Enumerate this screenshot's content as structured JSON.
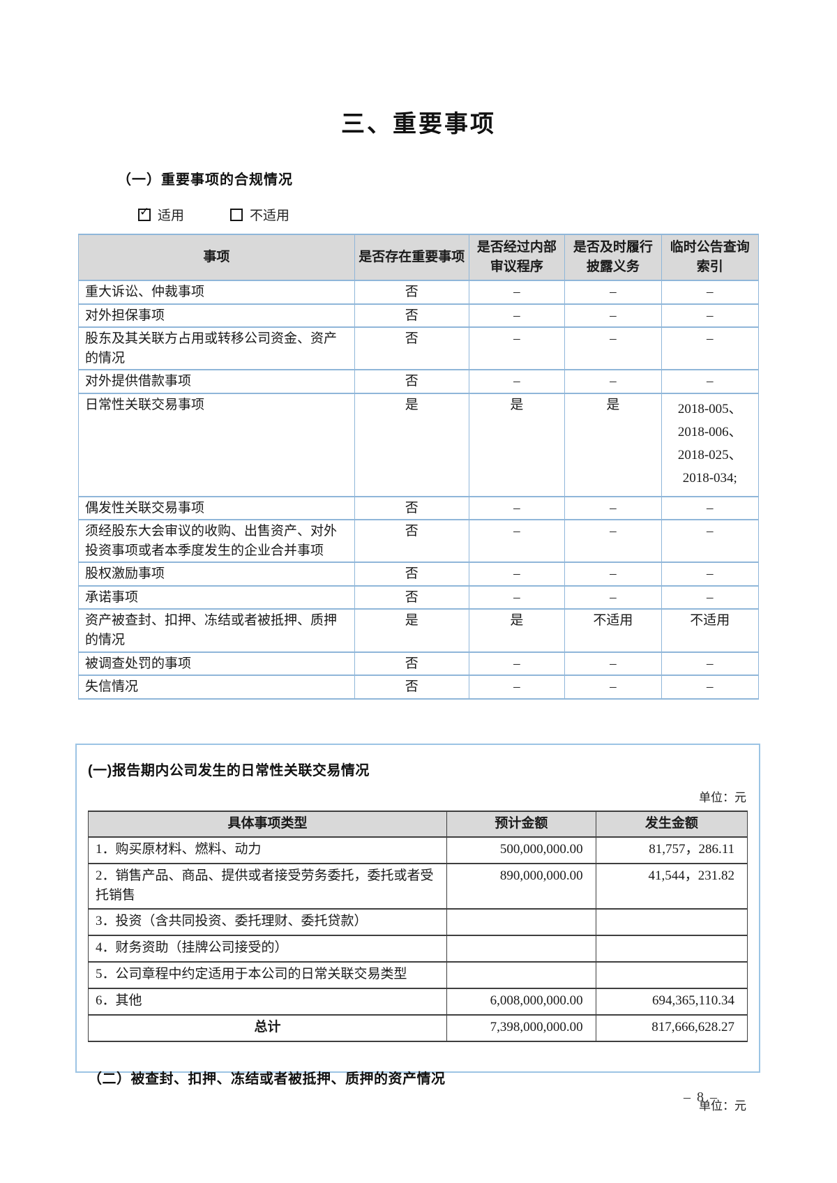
{
  "doc": {
    "title": "三、重要事项",
    "page_number": "– 8 –"
  },
  "compliance": {
    "heading": "（一）重要事项的合规情况",
    "applicable_label": "适用",
    "not_applicable_label": "不适用",
    "table": {
      "headers": [
        "事项",
        "是否存在重要事项",
        "是否经过内部审议程序",
        "是否及时履行披露义务",
        "临时公告查询索引"
      ],
      "rows": [
        [
          "重大诉讼、仲裁事项",
          "否",
          "–",
          "–",
          "–"
        ],
        [
          "对外担保事项",
          "否",
          "–",
          "–",
          "–"
        ],
        [
          "股东及其关联方占用或转移公司资金、资产的情况",
          "否",
          "–",
          "–",
          "–"
        ],
        [
          "对外提供借款事项",
          "否",
          "–",
          "–",
          "–"
        ],
        [
          "日常性关联交易事项",
          "是",
          "是",
          "是",
          "2018-005、\n2018-006、\n2018-025、\n2018-034;"
        ],
        [
          "偶发性关联交易事项",
          "否",
          "–",
          "–",
          "–"
        ],
        [
          "须经股东大会审议的收购、出售资产、对外投资事项或者本季度发生的企业合并事项",
          "否",
          "–",
          "–",
          "–"
        ],
        [
          "股权激励事项",
          "否",
          "–",
          "–",
          "–"
        ],
        [
          "承诺事项",
          "否",
          "–",
          "–",
          "–"
        ],
        [
          "资产被查封、扣押、冻结或者被抵押、质押的情况",
          "是",
          "是",
          "不适用",
          "不适用"
        ],
        [
          "被调查处罚的事项",
          "否",
          "–",
          "–",
          "–"
        ],
        [
          "失信情况",
          "否",
          "–",
          "–",
          "–"
        ]
      ]
    }
  },
  "related": {
    "heading": "(一)报告期内公司发生的日常性关联交易情况",
    "unit_label": "单位：元",
    "table": {
      "headers": [
        "具体事项类型",
        "预计金额",
        "发生金额"
      ],
      "rows": [
        [
          "1．购买原材料、燃料、动力",
          "500,000,000.00",
          "81,757，286.11"
        ],
        [
          "2．销售产品、商品、提供或者接受劳务委托，委托或者受托销售",
          "890,000,000.00",
          "41,544，231.82"
        ],
        [
          "3．投资（含共同投资、委托理财、委托贷款）",
          "",
          ""
        ],
        [
          "4．财务资助（挂牌公司接受的）",
          "",
          ""
        ],
        [
          "5．公司章程中约定适用于本公司的日常关联交易类型",
          "",
          ""
        ],
        [
          "6．其他",
          "6,008,000,000.00",
          "694,365,110.34"
        ],
        [
          "总计",
          "7,398,000,000.00",
          "817,666,628.27"
        ]
      ]
    },
    "pledged_heading": "（二）被查封、扣押、冻结或者被抵押、质押的资产情况",
    "unit_label2": "单位：元"
  }
}
